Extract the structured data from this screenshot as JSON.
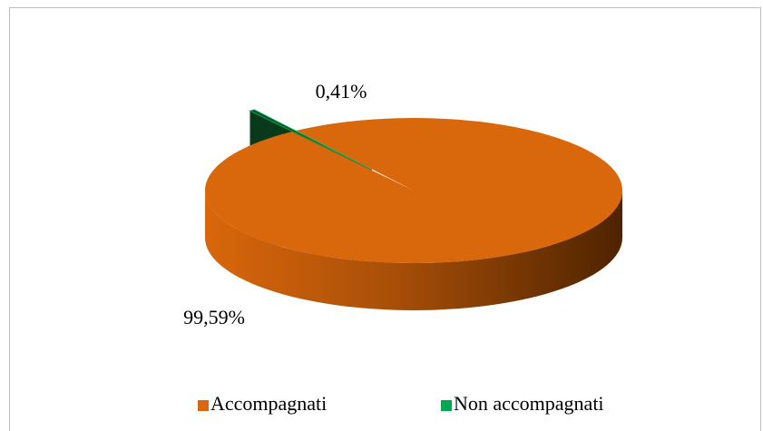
{
  "chart_data": {
    "type": "pie3d",
    "categories": [
      "Non accompagnati",
      "Accompagnati"
    ],
    "values": [
      0.41,
      99.59
    ],
    "value_labels": [
      "0,41%",
      "99,59%"
    ],
    "colors": [
      "#0b4d23",
      "#d9670b"
    ],
    "legend_colors": [
      "#00a651",
      "#d9670b"
    ],
    "legend": "bottom"
  }
}
